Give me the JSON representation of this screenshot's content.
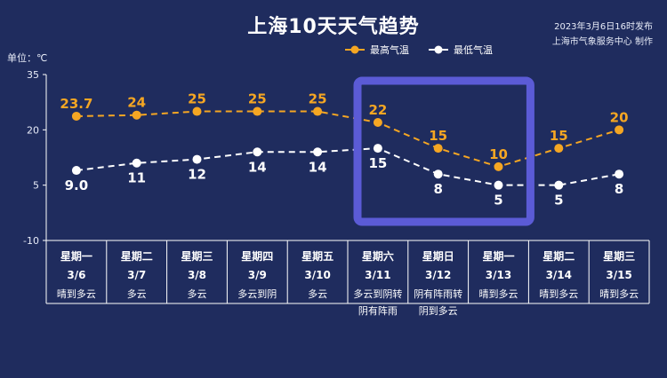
{
  "header": {
    "title": "上海10天天气趋势",
    "publish_time": "2023年3月6日16时发布",
    "publisher": "上海市气象服务中心 制作",
    "unit": "单位：℃"
  },
  "chart_data": {
    "type": "line",
    "title": "上海10天天气趋势",
    "ylabel": "单位：℃",
    "ylim": [
      -10,
      35
    ],
    "yticks": [
      -10,
      5,
      20,
      35
    ],
    "grid": false,
    "legend_position": "top-right",
    "categories": [
      {
        "weekday": "星期一",
        "date": "3/6",
        "weather": [
          "晴到多云"
        ]
      },
      {
        "weekday": "星期二",
        "date": "3/7",
        "weather": [
          "多云"
        ]
      },
      {
        "weekday": "星期三",
        "date": "3/8",
        "weather": [
          "多云"
        ]
      },
      {
        "weekday": "星期四",
        "date": "3/9",
        "weather": [
          "多云到阴"
        ]
      },
      {
        "weekday": "星期五",
        "date": "3/10",
        "weather": [
          "多云"
        ]
      },
      {
        "weekday": "星期六",
        "date": "3/11",
        "weather": [
          "多云到阴转",
          "阴有阵雨"
        ]
      },
      {
        "weekday": "星期日",
        "date": "3/12",
        "weather": [
          "阴有阵雨转",
          "阴到多云"
        ]
      },
      {
        "weekday": "星期一",
        "date": "3/13",
        "weather": [
          "晴到多云"
        ]
      },
      {
        "weekday": "星期二",
        "date": "3/14",
        "weather": [
          "晴到多云"
        ]
      },
      {
        "weekday": "星期三",
        "date": "3/15",
        "weather": [
          "晴到多云"
        ]
      }
    ],
    "series": [
      {
        "name": "最高气温",
        "color": "#f5a623",
        "labels": [
          "23.7",
          "24",
          "25",
          "25",
          "25",
          "22",
          "15",
          "10",
          "15",
          "20"
        ],
        "values": [
          23.7,
          24,
          25,
          25,
          25,
          22,
          15,
          10,
          15,
          20
        ]
      },
      {
        "name": "最低气温",
        "color": "#ffffff",
        "labels": [
          "9.0",
          "11",
          "12",
          "14",
          "14",
          "15",
          "8",
          "5",
          "5",
          "8"
        ],
        "values": [
          9.0,
          11,
          12,
          14,
          14,
          15,
          8,
          5,
          5,
          8
        ]
      }
    ],
    "highlight_range": [
      5,
      7
    ],
    "highlight_color": "#5b5bd6"
  }
}
